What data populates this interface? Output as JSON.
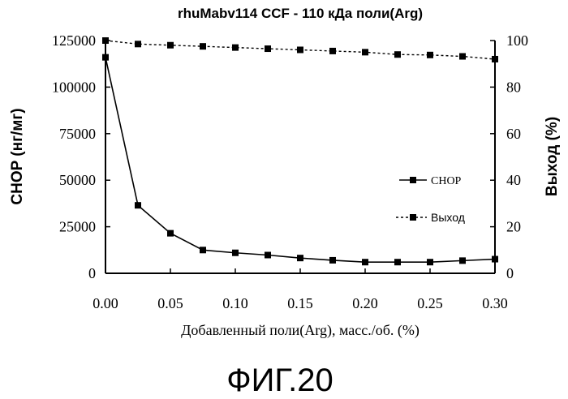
{
  "chart_data": {
    "type": "line",
    "title": "rhuMabv114 CCF - 110 кДа поли(Arg)",
    "xlabel": "Добавленный поли(Arg), масс./об. (%)",
    "ylabel_left": "CHOP (нг/мг)",
    "ylabel_right": "Выход (%)",
    "x": [
      0.0,
      0.025,
      0.05,
      0.075,
      0.1,
      0.125,
      0.15,
      0.175,
      0.2,
      0.225,
      0.25,
      0.275,
      0.3
    ],
    "xlim": [
      0,
      0.3
    ],
    "xticks": [
      "0.00",
      "0.05",
      "0.10",
      "0.15",
      "0.20",
      "0.25",
      "0.30"
    ],
    "ylim_left": [
      0,
      125000
    ],
    "yticks_left": [
      "0",
      "25000",
      "50000",
      "75000",
      "100000",
      "125000"
    ],
    "ylim_right": [
      0,
      100
    ],
    "yticks_right": [
      "0",
      "20",
      "40",
      "60",
      "80",
      "100"
    ],
    "series": [
      {
        "name": "CHOP",
        "axis": "left",
        "line_style": "solid",
        "values": [
          116000,
          36500,
          21500,
          12500,
          11000,
          9800,
          8200,
          7000,
          6000,
          6000,
          6000,
          6800,
          7600
        ]
      },
      {
        "name": "Выход",
        "axis": "right",
        "line_style": "dashed",
        "values": [
          100,
          98.5,
          98,
          97.5,
          97,
          96.5,
          96,
          95.5,
          95,
          94,
          93.8,
          93.2,
          92
        ]
      }
    ],
    "legend_position": "right-middle",
    "grid": false
  },
  "figure_caption": "ФИГ.20"
}
